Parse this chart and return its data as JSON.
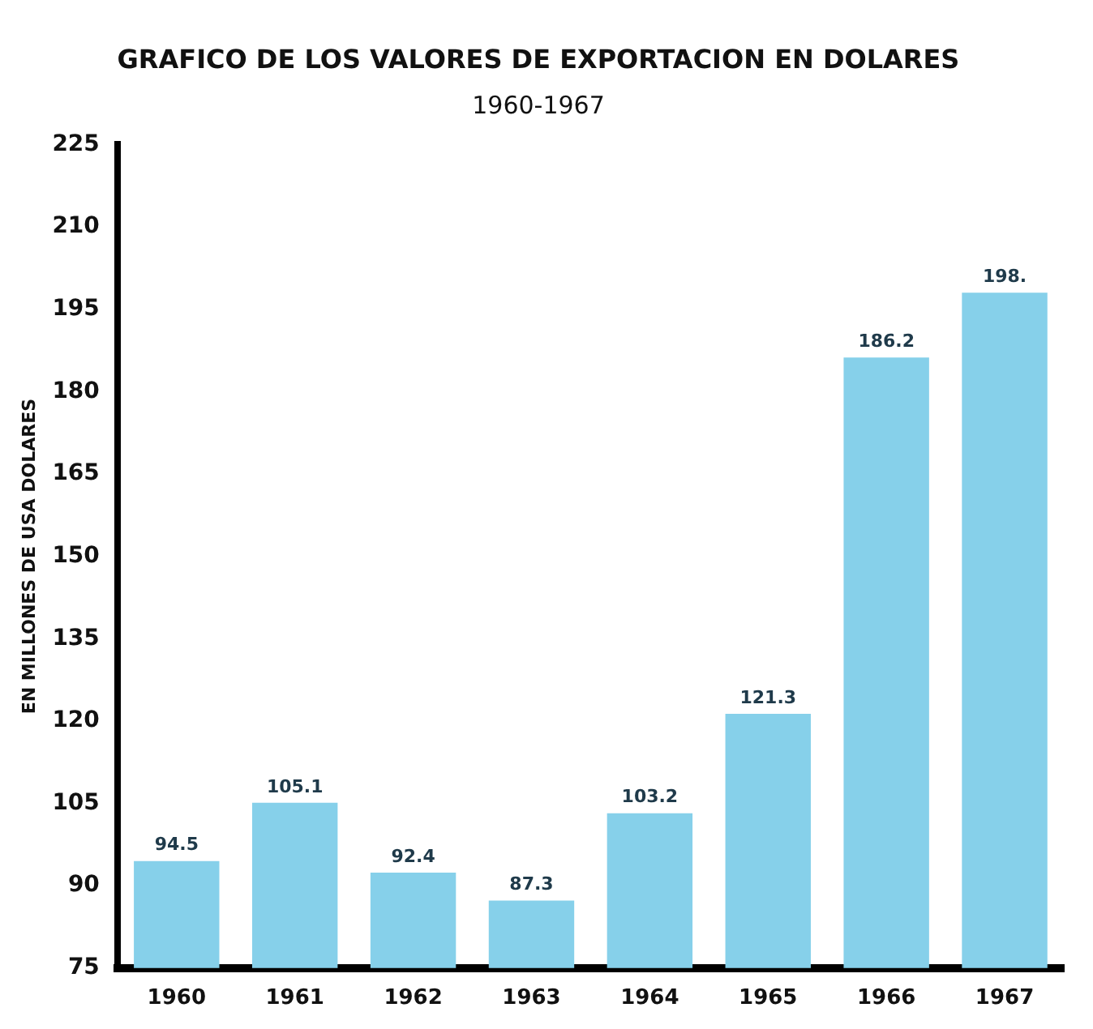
{
  "chart_data": {
    "type": "bar",
    "title": "GRAFICO DE LOS VALORES DE EXPORTACION EN DOLARES",
    "subtitle": "1960-1967",
    "ylabel": "EN MILLONES DE USA DOLARES",
    "categories": [
      "1960",
      "1961",
      "1962",
      "1963",
      "1964",
      "1965",
      "1966",
      "1967"
    ],
    "values": [
      94.5,
      105.1,
      92.4,
      87.3,
      103.2,
      121.3,
      186.2,
      198
    ],
    "value_labels": [
      "94.5",
      "105.1",
      "92.4",
      "87.3",
      "103.2",
      "121.3",
      "186.2",
      "198."
    ],
    "color": "#86d0ea",
    "ylim": [
      75,
      225
    ],
    "yticks": [
      75,
      90,
      105,
      120,
      135,
      150,
      165,
      180,
      195,
      210,
      225
    ],
    "grid": false,
    "legend": false
  }
}
